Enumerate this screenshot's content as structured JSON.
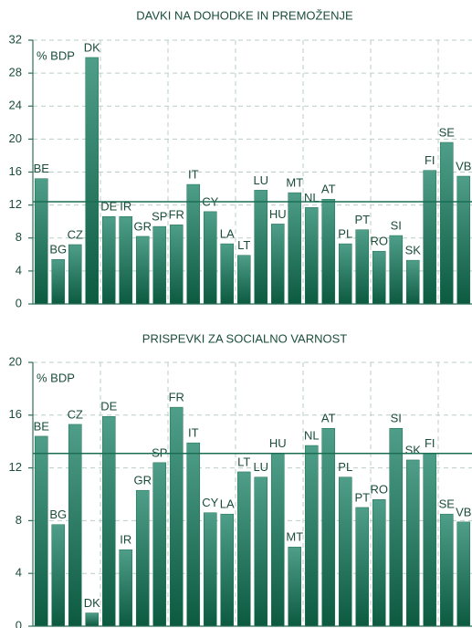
{
  "chart_data": [
    {
      "type": "bar",
      "title": "DAVKI NA DOHODKE IN PREMOŽENJE",
      "y_label": "% BDP",
      "categories": [
        "BE",
        "BG",
        "CZ",
        "DK",
        "DE",
        "IR",
        "GR",
        "SP",
        "FR",
        "IT",
        "CY",
        "LA",
        "LT",
        "LU",
        "HU",
        "MT",
        "NL",
        "AT",
        "PL",
        "PT",
        "RO",
        "SI",
        "SK",
        "FI",
        "SE",
        "VB"
      ],
      "values": [
        15.2,
        5.4,
        7.2,
        29.9,
        10.6,
        10.6,
        8.2,
        9.4,
        9.6,
        14.5,
        11.2,
        7.3,
        5.9,
        13.8,
        9.7,
        13.5,
        11.7,
        12.7,
        7.3,
        9.0,
        6.4,
        8.3,
        5.3,
        16.2,
        19.6,
        15.5
      ],
      "reference_line": 12.4,
      "color": "#1b6e52",
      "ylim": [
        0,
        32
      ],
      "yticks": [
        0,
        4,
        8,
        12,
        16,
        20,
        24,
        28,
        32
      ],
      "grid": true
    },
    {
      "type": "bar",
      "title": "PRISPEVKI ZA SOCIALNO VARNOST",
      "y_label": "% BDP",
      "categories": [
        "BE",
        "BG",
        "CZ",
        "DK",
        "DE",
        "IR",
        "GR",
        "SP",
        "FR",
        "IT",
        "CY",
        "LA",
        "LT",
        "LU",
        "HU",
        "MT",
        "NL",
        "AT",
        "PL",
        "PT",
        "RO",
        "SI",
        "SK",
        "FI",
        "SE",
        "VB"
      ],
      "values": [
        14.4,
        7.7,
        15.3,
        1.0,
        15.9,
        5.8,
        10.3,
        12.4,
        16.6,
        13.9,
        8.6,
        8.5,
        11.7,
        11.3,
        13.1,
        6.0,
        13.7,
        15.0,
        11.3,
        9.0,
        9.6,
        15.0,
        12.6,
        13.1,
        8.5,
        7.9
      ],
      "reference_line": 13.1,
      "color": "#1b6e52",
      "ylim": [
        0,
        20
      ],
      "yticks": [
        0,
        4,
        8,
        12,
        16,
        20
      ],
      "grid": true
    }
  ]
}
